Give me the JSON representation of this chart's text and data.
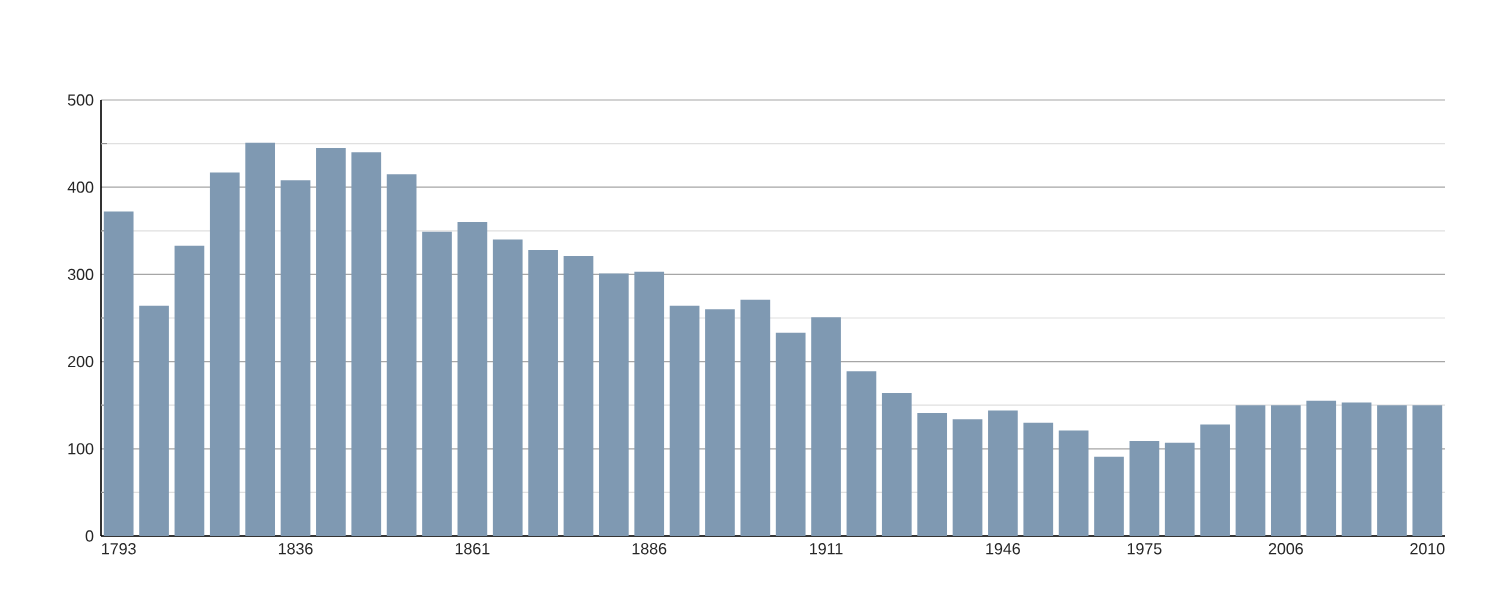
{
  "chart_data": {
    "type": "bar",
    "categories": [
      "1793",
      null,
      null,
      null,
      null,
      "1836",
      null,
      null,
      null,
      null,
      "1861",
      null,
      null,
      null,
      null,
      "1886",
      null,
      null,
      null,
      null,
      "1911",
      null,
      null,
      null,
      null,
      "1946",
      null,
      null,
      null,
      "1975",
      null,
      null,
      null,
      "2006",
      null,
      null,
      null,
      "2010"
    ],
    "values": [
      372,
      264,
      333,
      417,
      451,
      408,
      445,
      440,
      415,
      349,
      360,
      340,
      328,
      321,
      301,
      303,
      264,
      260,
      271,
      233,
      251,
      189,
      164,
      141,
      134,
      144,
      130,
      121,
      91,
      109,
      107,
      128,
      150,
      150,
      155,
      153,
      150,
      150
    ],
    "color": "#7f99b2",
    "ylim": [
      0,
      500
    ],
    "yticks": [
      0,
      {
        "value": 50,
        "label": null
      },
      100,
      {
        "value": 150,
        "label": null
      },
      200,
      {
        "value": 250,
        "label": null
      },
      300,
      {
        "value": 350,
        "label": null
      },
      400,
      {
        "value": 450,
        "label": null
      },
      500
    ],
    "grid": "y"
  }
}
